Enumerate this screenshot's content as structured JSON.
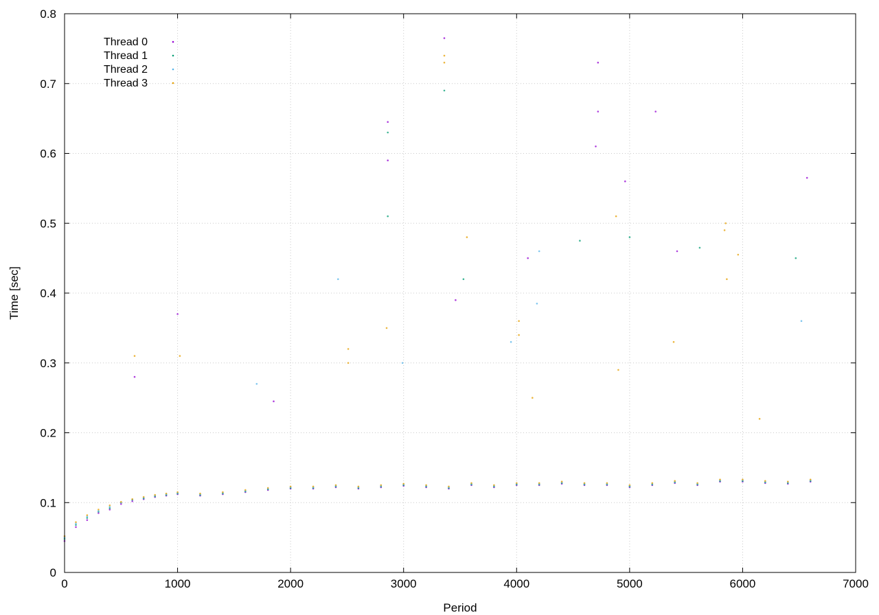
{
  "chart_data": {
    "type": "scatter",
    "xlabel": "Period",
    "ylabel": "Time [sec]",
    "xlim": [
      0,
      7000
    ],
    "ylim": [
      0,
      0.8
    ],
    "x_ticks": [
      0,
      1000,
      2000,
      3000,
      4000,
      5000,
      6000,
      7000
    ],
    "y_ticks": [
      0,
      0.1,
      0.2,
      0.3,
      0.4,
      0.5,
      0.6,
      0.7,
      0.8
    ],
    "grid": true,
    "legend_position": "top-left",
    "colors": [
      "#9400d3",
      "#009e73",
      "#56b4e9",
      "#e69f00"
    ],
    "series": [
      {
        "name": "Thread 0",
        "points": [
          [
            0,
            0.045
          ],
          [
            100,
            0.065
          ],
          [
            200,
            0.075
          ],
          [
            300,
            0.085
          ],
          [
            400,
            0.09
          ],
          [
            500,
            0.098
          ],
          [
            600,
            0.102
          ],
          [
            700,
            0.105
          ],
          [
            800,
            0.108
          ],
          [
            900,
            0.11
          ],
          [
            1000,
            0.112
          ],
          [
            1200,
            0.11
          ],
          [
            1400,
            0.112
          ],
          [
            1600,
            0.115
          ],
          [
            1800,
            0.118
          ],
          [
            2000,
            0.12
          ],
          [
            2200,
            0.12
          ],
          [
            2400,
            0.122
          ],
          [
            2600,
            0.12
          ],
          [
            2800,
            0.122
          ],
          [
            3000,
            0.124
          ],
          [
            3200,
            0.122
          ],
          [
            3400,
            0.12
          ],
          [
            3600,
            0.125
          ],
          [
            3800,
            0.122
          ],
          [
            4000,
            0.125
          ],
          [
            4200,
            0.125
          ],
          [
            4400,
            0.127
          ],
          [
            4600,
            0.125
          ],
          [
            4800,
            0.125
          ],
          [
            5000,
            0.122
          ],
          [
            5200,
            0.125
          ],
          [
            5400,
            0.128
          ],
          [
            5600,
            0.125
          ],
          [
            5800,
            0.13
          ],
          [
            6000,
            0.13
          ],
          [
            6200,
            0.128
          ],
          [
            6400,
            0.127
          ],
          [
            6600,
            0.13
          ],
          [
            1850,
            0.245
          ],
          [
            3360,
            0.765
          ],
          [
            4720,
            0.73
          ],
          [
            2860,
            0.645
          ],
          [
            5230,
            0.66
          ],
          [
            4720,
            0.66
          ],
          [
            6570,
            0.565
          ],
          [
            4700,
            0.61
          ],
          [
            2860,
            0.59
          ],
          [
            4960,
            0.56
          ],
          [
            1000,
            0.37
          ],
          [
            3460,
            0.39
          ],
          [
            4100,
            0.45
          ],
          [
            5420,
            0.46
          ],
          [
            620,
            0.28
          ]
        ]
      },
      {
        "name": "Thread 1",
        "points": [
          [
            0,
            0.048
          ],
          [
            100,
            0.068
          ],
          [
            200,
            0.078
          ],
          [
            300,
            0.087
          ],
          [
            400,
            0.092
          ],
          [
            500,
            0.1
          ],
          [
            600,
            0.104
          ],
          [
            700,
            0.106
          ],
          [
            800,
            0.109
          ],
          [
            900,
            0.111
          ],
          [
            1000,
            0.113
          ],
          [
            1200,
            0.111
          ],
          [
            1400,
            0.113
          ],
          [
            1600,
            0.116
          ],
          [
            1800,
            0.119
          ],
          [
            2000,
            0.121
          ],
          [
            2200,
            0.121
          ],
          [
            2400,
            0.123
          ],
          [
            2600,
            0.121
          ],
          [
            2800,
            0.123
          ],
          [
            3000,
            0.125
          ],
          [
            3200,
            0.123
          ],
          [
            3400,
            0.121
          ],
          [
            3600,
            0.126
          ],
          [
            3800,
            0.123
          ],
          [
            4000,
            0.126
          ],
          [
            4200,
            0.126
          ],
          [
            4400,
            0.128
          ],
          [
            4600,
            0.126
          ],
          [
            4800,
            0.126
          ],
          [
            5000,
            0.123
          ],
          [
            5200,
            0.126
          ],
          [
            5400,
            0.129
          ],
          [
            5600,
            0.126
          ],
          [
            5800,
            0.131
          ],
          [
            6000,
            0.131
          ],
          [
            6200,
            0.129
          ],
          [
            6400,
            0.128
          ],
          [
            6600,
            0.131
          ],
          [
            2860,
            0.63
          ],
          [
            2860,
            0.51
          ],
          [
            3360,
            0.69
          ],
          [
            5000,
            0.48
          ],
          [
            3530,
            0.42
          ],
          [
            4560,
            0.475
          ],
          [
            5620,
            0.465
          ],
          [
            6470,
            0.45
          ]
        ]
      },
      {
        "name": "Thread 2",
        "points": [
          [
            0,
            0.05
          ],
          [
            100,
            0.07
          ],
          [
            200,
            0.08
          ],
          [
            300,
            0.088
          ],
          [
            400,
            0.094
          ],
          [
            500,
            0.1
          ],
          [
            600,
            0.104
          ],
          [
            700,
            0.107
          ],
          [
            800,
            0.11
          ],
          [
            900,
            0.112
          ],
          [
            1000,
            0.114
          ],
          [
            1200,
            0.112
          ],
          [
            1400,
            0.114
          ],
          [
            1600,
            0.117
          ],
          [
            1800,
            0.12
          ],
          [
            2000,
            0.122
          ],
          [
            2200,
            0.122
          ],
          [
            2400,
            0.124
          ],
          [
            2600,
            0.122
          ],
          [
            2800,
            0.124
          ],
          [
            3000,
            0.126
          ],
          [
            3200,
            0.124
          ],
          [
            3400,
            0.122
          ],
          [
            3600,
            0.127
          ],
          [
            3800,
            0.124
          ],
          [
            4000,
            0.127
          ],
          [
            4200,
            0.127
          ],
          [
            4400,
            0.129
          ],
          [
            4600,
            0.127
          ],
          [
            4800,
            0.127
          ],
          [
            5000,
            0.124
          ],
          [
            5200,
            0.127
          ],
          [
            5400,
            0.13
          ],
          [
            5600,
            0.127
          ],
          [
            5800,
            0.132
          ],
          [
            6000,
            0.132
          ],
          [
            6200,
            0.13
          ],
          [
            6400,
            0.129
          ],
          [
            6600,
            0.132
          ],
          [
            4200,
            0.46
          ],
          [
            4180,
            0.385
          ],
          [
            2420,
            0.42
          ],
          [
            6520,
            0.36
          ],
          [
            1700,
            0.27
          ],
          [
            3950,
            0.33
          ],
          [
            2990,
            0.3
          ]
        ]
      },
      {
        "name": "Thread 3",
        "points": [
          [
            0,
            0.052
          ],
          [
            100,
            0.072
          ],
          [
            200,
            0.082
          ],
          [
            300,
            0.09
          ],
          [
            400,
            0.096
          ],
          [
            500,
            0.101
          ],
          [
            600,
            0.105
          ],
          [
            700,
            0.108
          ],
          [
            800,
            0.111
          ],
          [
            900,
            0.113
          ],
          [
            1000,
            0.115
          ],
          [
            1200,
            0.113
          ],
          [
            1400,
            0.115
          ],
          [
            1600,
            0.118
          ],
          [
            1800,
            0.121
          ],
          [
            2000,
            0.123
          ],
          [
            2200,
            0.123
          ],
          [
            2400,
            0.125
          ],
          [
            2600,
            0.123
          ],
          [
            2800,
            0.125
          ],
          [
            3000,
            0.127
          ],
          [
            3200,
            0.125
          ],
          [
            3400,
            0.123
          ],
          [
            3600,
            0.128
          ],
          [
            3800,
            0.125
          ],
          [
            4000,
            0.128
          ],
          [
            4200,
            0.128
          ],
          [
            4400,
            0.13
          ],
          [
            4600,
            0.128
          ],
          [
            4800,
            0.128
          ],
          [
            5000,
            0.125
          ],
          [
            5200,
            0.128
          ],
          [
            5400,
            0.131
          ],
          [
            5600,
            0.128
          ],
          [
            5800,
            0.133
          ],
          [
            6000,
            0.133
          ],
          [
            6200,
            0.131
          ],
          [
            6400,
            0.13
          ],
          [
            6600,
            0.133
          ],
          [
            3360,
            0.74
          ],
          [
            3360,
            0.73
          ],
          [
            620,
            0.31
          ],
          [
            1020,
            0.31
          ],
          [
            2510,
            0.32
          ],
          [
            2510,
            0.3
          ],
          [
            3560,
            0.48
          ],
          [
            4880,
            0.51
          ],
          [
            5840,
            0.49
          ],
          [
            5850,
            0.5
          ],
          [
            5960,
            0.455
          ],
          [
            4020,
            0.36
          ],
          [
            4020,
            0.34
          ],
          [
            4140,
            0.25
          ],
          [
            5390,
            0.33
          ],
          [
            4900,
            0.29
          ],
          [
            6150,
            0.22
          ],
          [
            2850,
            0.35
          ],
          [
            5860,
            0.42
          ]
        ]
      }
    ]
  }
}
